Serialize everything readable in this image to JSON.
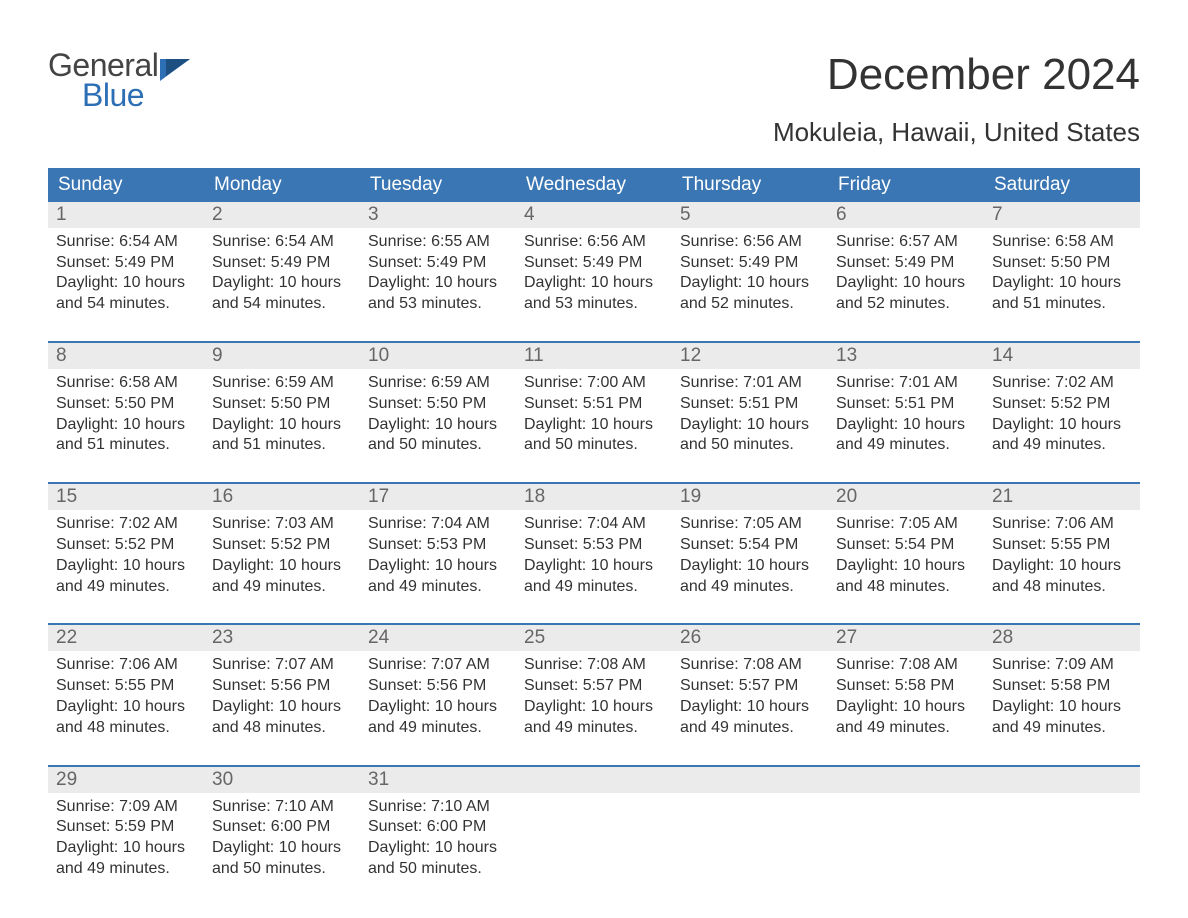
{
  "brand": {
    "general": "General",
    "blue": "Blue",
    "tri_color": "#2c6fb5"
  },
  "title": "December 2024",
  "location": "Mokuleia, Hawaii, United States",
  "colors": {
    "header_bg": "#3a76b3",
    "header_text": "#ffffff",
    "daynum_bg": "#ebebeb",
    "daynum_text": "#666666",
    "body_text": "#333333",
    "week_border": "#3a76b3",
    "page_bg": "#ffffff"
  },
  "fonts": {
    "title_size": 44,
    "location_size": 26,
    "header_size": 19,
    "daynum_size": 19,
    "body_size": 16
  },
  "day_names": [
    "Sunday",
    "Monday",
    "Tuesday",
    "Wednesday",
    "Thursday",
    "Friday",
    "Saturday"
  ],
  "labels": {
    "sunrise": "Sunrise: ",
    "sunset": "Sunset: ",
    "daylight_prefix": "Daylight: ",
    "daylight_mid": " hours",
    "daylight_suffix": " minutes."
  },
  "weeks": [
    [
      {
        "n": "1",
        "sunrise": "6:54 AM",
        "sunset": "5:49 PM",
        "dl_h": "10",
        "dl_m": "and 54"
      },
      {
        "n": "2",
        "sunrise": "6:54 AM",
        "sunset": "5:49 PM",
        "dl_h": "10",
        "dl_m": "and 54"
      },
      {
        "n": "3",
        "sunrise": "6:55 AM",
        "sunset": "5:49 PM",
        "dl_h": "10",
        "dl_m": "and 53"
      },
      {
        "n": "4",
        "sunrise": "6:56 AM",
        "sunset": "5:49 PM",
        "dl_h": "10",
        "dl_m": "and 53"
      },
      {
        "n": "5",
        "sunrise": "6:56 AM",
        "sunset": "5:49 PM",
        "dl_h": "10",
        "dl_m": "and 52"
      },
      {
        "n": "6",
        "sunrise": "6:57 AM",
        "sunset": "5:49 PM",
        "dl_h": "10",
        "dl_m": "and 52"
      },
      {
        "n": "7",
        "sunrise": "6:58 AM",
        "sunset": "5:50 PM",
        "dl_h": "10",
        "dl_m": "and 51"
      }
    ],
    [
      {
        "n": "8",
        "sunrise": "6:58 AM",
        "sunset": "5:50 PM",
        "dl_h": "10",
        "dl_m": "and 51"
      },
      {
        "n": "9",
        "sunrise": "6:59 AM",
        "sunset": "5:50 PM",
        "dl_h": "10",
        "dl_m": "and 51"
      },
      {
        "n": "10",
        "sunrise": "6:59 AM",
        "sunset": "5:50 PM",
        "dl_h": "10",
        "dl_m": "and 50"
      },
      {
        "n": "11",
        "sunrise": "7:00 AM",
        "sunset": "5:51 PM",
        "dl_h": "10",
        "dl_m": "and 50"
      },
      {
        "n": "12",
        "sunrise": "7:01 AM",
        "sunset": "5:51 PM",
        "dl_h": "10",
        "dl_m": "and 50"
      },
      {
        "n": "13",
        "sunrise": "7:01 AM",
        "sunset": "5:51 PM",
        "dl_h": "10",
        "dl_m": "and 49"
      },
      {
        "n": "14",
        "sunrise": "7:02 AM",
        "sunset": "5:52 PM",
        "dl_h": "10",
        "dl_m": "and 49"
      }
    ],
    [
      {
        "n": "15",
        "sunrise": "7:02 AM",
        "sunset": "5:52 PM",
        "dl_h": "10",
        "dl_m": "and 49"
      },
      {
        "n": "16",
        "sunrise": "7:03 AM",
        "sunset": "5:52 PM",
        "dl_h": "10",
        "dl_m": "and 49"
      },
      {
        "n": "17",
        "sunrise": "7:04 AM",
        "sunset": "5:53 PM",
        "dl_h": "10",
        "dl_m": "and 49"
      },
      {
        "n": "18",
        "sunrise": "7:04 AM",
        "sunset": "5:53 PM",
        "dl_h": "10",
        "dl_m": "and 49"
      },
      {
        "n": "19",
        "sunrise": "7:05 AM",
        "sunset": "5:54 PM",
        "dl_h": "10",
        "dl_m": "and 49"
      },
      {
        "n": "20",
        "sunrise": "7:05 AM",
        "sunset": "5:54 PM",
        "dl_h": "10",
        "dl_m": "and 48"
      },
      {
        "n": "21",
        "sunrise": "7:06 AM",
        "sunset": "5:55 PM",
        "dl_h": "10",
        "dl_m": "and 48"
      }
    ],
    [
      {
        "n": "22",
        "sunrise": "7:06 AM",
        "sunset": "5:55 PM",
        "dl_h": "10",
        "dl_m": "and 48"
      },
      {
        "n": "23",
        "sunrise": "7:07 AM",
        "sunset": "5:56 PM",
        "dl_h": "10",
        "dl_m": "and 48"
      },
      {
        "n": "24",
        "sunrise": "7:07 AM",
        "sunset": "5:56 PM",
        "dl_h": "10",
        "dl_m": "and 49"
      },
      {
        "n": "25",
        "sunrise": "7:08 AM",
        "sunset": "5:57 PM",
        "dl_h": "10",
        "dl_m": "and 49"
      },
      {
        "n": "26",
        "sunrise": "7:08 AM",
        "sunset": "5:57 PM",
        "dl_h": "10",
        "dl_m": "and 49"
      },
      {
        "n": "27",
        "sunrise": "7:08 AM",
        "sunset": "5:58 PM",
        "dl_h": "10",
        "dl_m": "and 49"
      },
      {
        "n": "28",
        "sunrise": "7:09 AM",
        "sunset": "5:58 PM",
        "dl_h": "10",
        "dl_m": "and 49"
      }
    ],
    [
      {
        "n": "29",
        "sunrise": "7:09 AM",
        "sunset": "5:59 PM",
        "dl_h": "10",
        "dl_m": "and 49"
      },
      {
        "n": "30",
        "sunrise": "7:10 AM",
        "sunset": "6:00 PM",
        "dl_h": "10",
        "dl_m": "and 50"
      },
      {
        "n": "31",
        "sunrise": "7:10 AM",
        "sunset": "6:00 PM",
        "dl_h": "10",
        "dl_m": "and 50"
      },
      null,
      null,
      null,
      null
    ]
  ]
}
